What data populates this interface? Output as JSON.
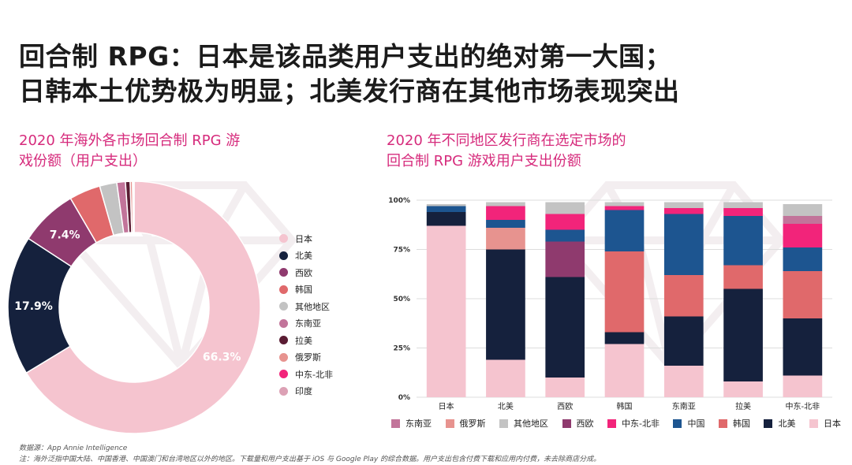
{
  "title_line1": "回合制 RPG：日本是该品类用户支出的绝对第一大国；",
  "title_line2": "日韩本土优势极为明显；北美发行商在其他市场表现突出",
  "colors": {
    "japan": "#f5c4cf",
    "north_america": "#15213d",
    "western_europe": "#8f3a6e",
    "korea": "#e0696b",
    "other_regions": "#c3c3c3",
    "southeast_asia": "#c2749a",
    "latin_america": "#5a1c33",
    "russia": "#e7938f",
    "mena": "#f2247a",
    "india": "#dca1b5",
    "china": "#1d5590",
    "accent": "#d62b7c"
  },
  "chart_data": [
    {
      "type": "pie",
      "title_line1": "2020 年海外各市场回合制 RPG 游",
      "title_line2": "戏份额（用户支出）",
      "slices": [
        {
          "name": "日本",
          "value": 66.3,
          "color_key": "japan",
          "label": "66.3%"
        },
        {
          "name": "北美",
          "value": 17.9,
          "color_key": "north_america",
          "label": "17.9%"
        },
        {
          "name": "西欧",
          "value": 7.4,
          "color_key": "western_europe",
          "label": "7.4%"
        },
        {
          "name": "韩国",
          "value": 4.0,
          "color_key": "korea",
          "label": ""
        },
        {
          "name": "其他地区",
          "value": 2.2,
          "color_key": "other_regions",
          "label": ""
        },
        {
          "name": "东南亚",
          "value": 1.1,
          "color_key": "southeast_asia",
          "label": ""
        },
        {
          "name": "拉美",
          "value": 0.6,
          "color_key": "latin_america",
          "label": ""
        },
        {
          "name": "俄罗斯",
          "value": 0.3,
          "color_key": "russia",
          "label": ""
        },
        {
          "name": "中东-北非",
          "value": 0.15,
          "color_key": "mena",
          "label": ""
        },
        {
          "name": "印度",
          "value": 0.05,
          "color_key": "india",
          "label": ""
        }
      ],
      "legend_placement": "right"
    },
    {
      "type": "bar",
      "stacked": true,
      "title_line1": "2020 年不同地区发行商在选定市场的",
      "title_line2": "回合制 RPG 游戏用户支出份额",
      "categories": [
        "日本",
        "北美",
        "西欧",
        "韩国",
        "东南亚",
        "拉美",
        "中东-北非"
      ],
      "y_ticks": [
        "0%",
        "25%",
        "50%",
        "75%",
        "100%"
      ],
      "ylim": [
        0,
        100
      ],
      "series": [
        {
          "name": "日本",
          "color_key": "japan",
          "values": [
            87,
            19,
            10,
            27,
            16,
            8,
            11
          ]
        },
        {
          "name": "北美",
          "color_key": "north_america",
          "values": [
            7,
            56,
            51,
            6,
            25,
            47,
            29
          ]
        },
        {
          "name": "韩国",
          "color_key": "korea",
          "values": [
            0,
            0,
            0,
            41,
            21,
            12,
            24
          ]
        },
        {
          "name": "西欧",
          "color_key": "western_europe",
          "values": [
            0,
            0,
            18,
            0,
            0,
            0,
            0
          ]
        },
        {
          "name": "俄罗斯",
          "color_key": "russia",
          "values": [
            0,
            11,
            0,
            0,
            0,
            0,
            0
          ]
        },
        {
          "name": "中国",
          "color_key": "china",
          "values": [
            3,
            4,
            6,
            21,
            31,
            25,
            12
          ]
        },
        {
          "name": "中东-北非",
          "color_key": "mena",
          "values": [
            0,
            7,
            8,
            2,
            3,
            4,
            12
          ]
        },
        {
          "name": "东南亚",
          "color_key": "southeast_asia",
          "values": [
            0,
            0,
            0,
            0,
            0,
            0,
            4
          ]
        },
        {
          "name": "其他地区",
          "color_key": "other_regions",
          "values": [
            1,
            2,
            6,
            2,
            3,
            3,
            6
          ]
        }
      ],
      "legend": [
        "东南亚",
        "俄罗斯",
        "其他地区",
        "西欧",
        "中东-北非",
        "中国",
        "韩国",
        "北美",
        "日本"
      ],
      "legend_placement": "bottom",
      "grid": true
    }
  ],
  "footnote_source": "数据源：App Annie Intelligence",
  "footnote_disclaimer": "注：海外泛指中国大陆、中国香港、中国澳门和台湾地区以外的地区。下载量和用户支出基于 iOS 与 Google Play 的综合数据。用户支出包含付费下载和应用内付费，未去除商店分成。"
}
